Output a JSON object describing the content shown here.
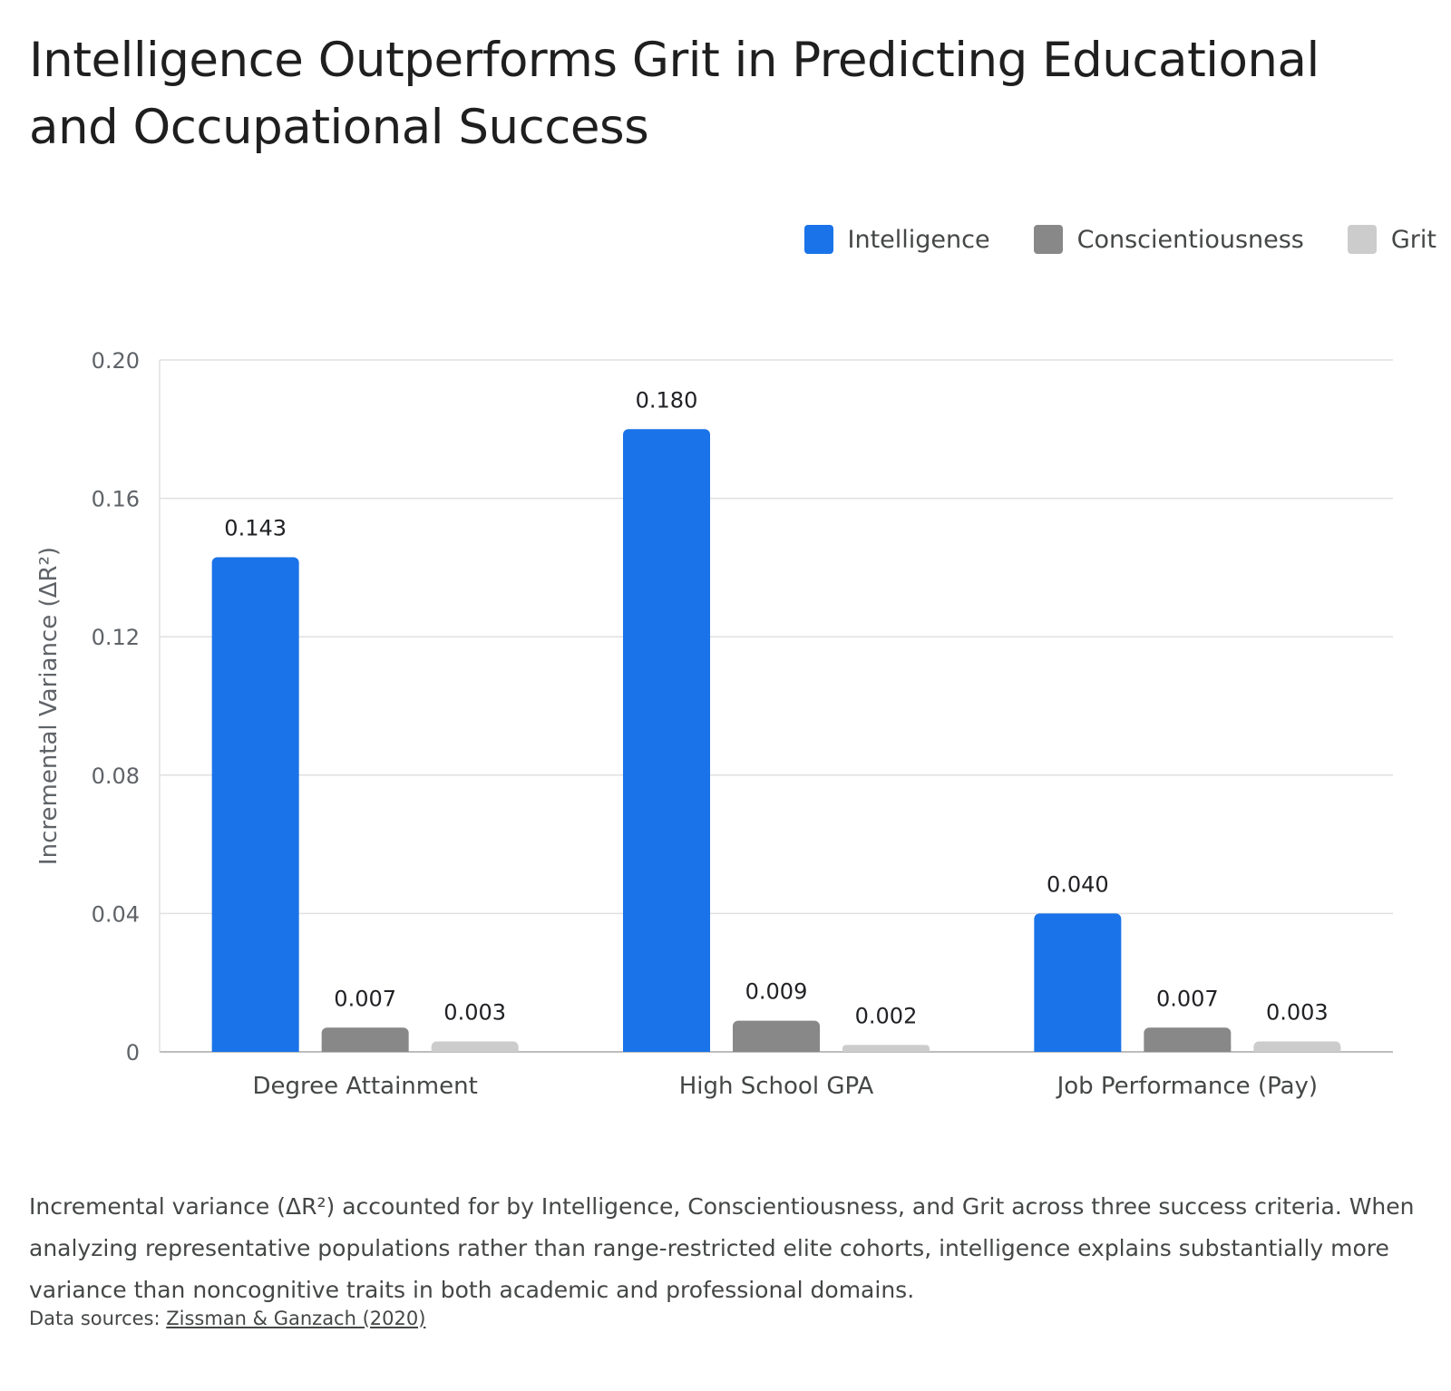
{
  "title": "Intelligence Outperforms Grit in Predicting Educational and Occupational Success",
  "caption": "Incremental variance (ΔR²) accounted for by Intelligence, Conscientiousness, and Grit across three success criteria. When analyzing representative populations rather than range-restricted elite cohorts, intelligence explains substantially more variance than noncognitive traits in both academic and professional domains.",
  "source": {
    "prefix": "Data sources: ",
    "link_text": "Zissman & Ganzach (2020)"
  },
  "chart_data": {
    "type": "bar",
    "title": "Intelligence Outperforms Grit in Predicting Educational and Occupational Success",
    "xlabel": "",
    "ylabel": "Incremental Variance (ΔR²)",
    "ylim": [
      0,
      0.2
    ],
    "yticks": [
      0,
      0.04,
      0.08,
      0.12,
      0.16,
      0.2
    ],
    "ytick_labels": [
      "0",
      "0.04",
      "0.08",
      "0.12",
      "0.16",
      "0.20"
    ],
    "categories": [
      "Degree Attainment",
      "High School GPA",
      "Job Performance (Pay)"
    ],
    "series": [
      {
        "name": "Intelligence",
        "color": "#1a73e8",
        "values": [
          0.143,
          0.18,
          0.04
        ],
        "labels": [
          "0.143",
          "0.180",
          "0.040"
        ]
      },
      {
        "name": "Conscientiousness",
        "color": "#888888",
        "values": [
          0.007,
          0.009,
          0.007
        ],
        "labels": [
          "0.007",
          "0.009",
          "0.007"
        ]
      },
      {
        "name": "Grit",
        "color": "#cccccc",
        "values": [
          0.003,
          0.002,
          0.003
        ],
        "labels": [
          "0.003",
          "0.002",
          "0.003"
        ]
      }
    ],
    "grid": true,
    "legend_position": "top-right"
  }
}
